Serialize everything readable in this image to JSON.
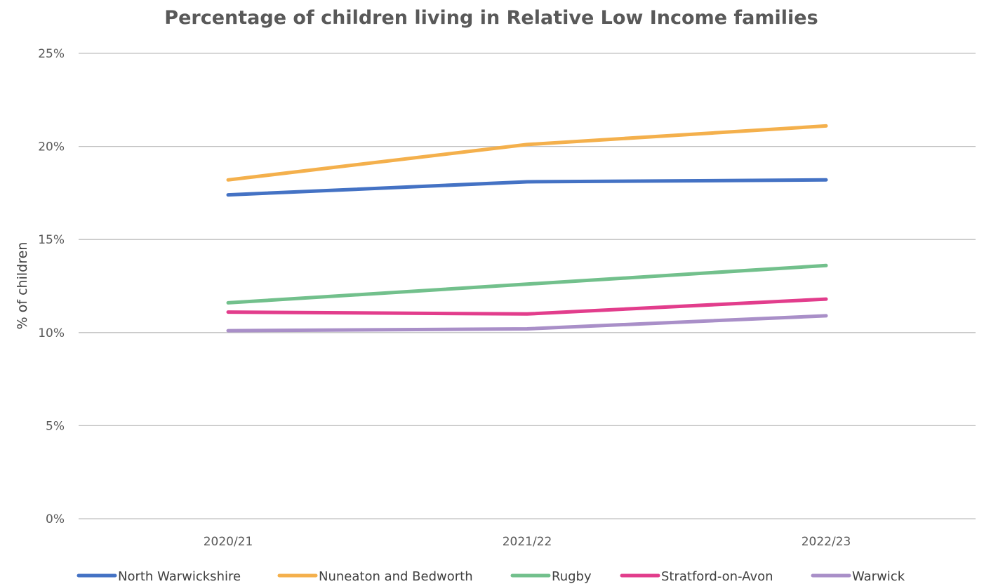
{
  "chart_data": {
    "type": "line",
    "title": "Percentage of children living in Relative Low Income families",
    "xlabel": "",
    "ylabel": "% of children",
    "categories": [
      "2020/21",
      "2021/22",
      "2022/23"
    ],
    "ylim": [
      0,
      25
    ],
    "yticks": [
      0,
      5,
      10,
      15,
      20,
      25
    ],
    "ytick_labels": [
      "0%",
      "5%",
      "10%",
      "15%",
      "20%",
      "25%"
    ],
    "grid": true,
    "legend_position": "bottom",
    "series": [
      {
        "name": "North Warwickshire",
        "color": "#4472c4",
        "values": [
          17.4,
          18.1,
          18.2
        ]
      },
      {
        "name": "Nuneaton and Bedworth",
        "color": "#f4b04c",
        "values": [
          18.2,
          20.1,
          21.1
        ]
      },
      {
        "name": "Rugby",
        "color": "#72c08c",
        "values": [
          11.6,
          12.6,
          13.6
        ]
      },
      {
        "name": "Stratford-on-Avon",
        "color": "#e23d8c",
        "values": [
          11.1,
          11.0,
          11.8
        ]
      },
      {
        "name": "Warwick",
        "color": "#a98fc8",
        "values": [
          10.1,
          10.2,
          10.9
        ]
      }
    ]
  }
}
